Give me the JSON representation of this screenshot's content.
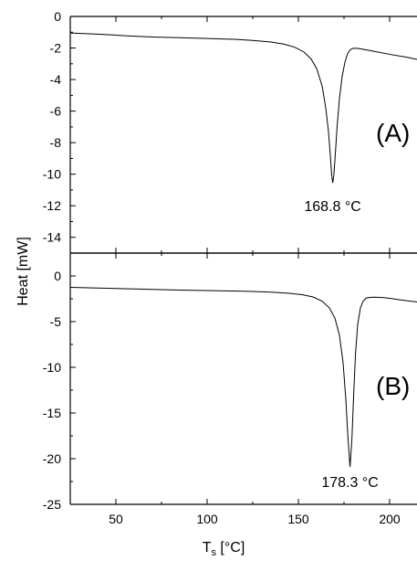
{
  "chart_data": [
    {
      "type": "line",
      "panel_label": "(A)",
      "annotation": "168.8 °C",
      "annotation_at": [
        168.8,
        -12.0
      ],
      "xlim": [
        25,
        215
      ],
      "ylim": [
        -15,
        0
      ],
      "yticks": [
        0,
        -2,
        -4,
        -6,
        -8,
        -10,
        -12,
        -14
      ],
      "xticks": [
        50,
        100,
        150,
        200
      ],
      "series": [
        {
          "x": [
            25,
            40,
            55,
            70,
            85,
            100,
            115,
            125,
            135,
            142,
            148,
            153,
            157,
            160,
            163,
            165,
            166.5,
            167.5,
            168.2,
            168.8,
            169.4,
            170.2,
            171.2,
            172.5,
            174,
            175.5,
            177,
            178.5,
            180,
            182,
            185,
            190,
            200,
            210,
            215
          ],
          "y": [
            -1.05,
            -1.12,
            -1.22,
            -1.3,
            -1.35,
            -1.4,
            -1.45,
            -1.52,
            -1.62,
            -1.75,
            -1.95,
            -2.25,
            -2.7,
            -3.3,
            -4.4,
            -5.8,
            -7.3,
            -8.8,
            -10.0,
            -10.55,
            -10.1,
            -8.8,
            -7.0,
            -5.2,
            -3.8,
            -2.9,
            -2.35,
            -2.1,
            -2.02,
            -2.02,
            -2.07,
            -2.18,
            -2.4,
            -2.6,
            -2.72
          ]
        }
      ]
    },
    {
      "type": "line",
      "panel_label": "(B)",
      "annotation": "178.3 °C",
      "annotation_at": [
        178.3,
        -22.5
      ],
      "xlim": [
        25,
        215
      ],
      "ylim": [
        -25,
        2.5
      ],
      "yticks": [
        0,
        -5,
        -10,
        -15,
        -20,
        -25
      ],
      "xticks": [
        50,
        100,
        150,
        200
      ],
      "xlabel": "T",
      "xlabel_sub": "s",
      "xlabel_unit": "[°C]",
      "series": [
        {
          "x": [
            25,
            40,
            55,
            70,
            85,
            100,
            115,
            125,
            135,
            145,
            152,
            158,
            163,
            167,
            170,
            172.5,
            174.5,
            176,
            177.2,
            178.3,
            179.3,
            180.3,
            181.3,
            182.5,
            184,
            185.5,
            187,
            189,
            192,
            196,
            200,
            206,
            210,
            215
          ],
          "y": [
            -1.25,
            -1.32,
            -1.4,
            -1.48,
            -1.55,
            -1.6,
            -1.65,
            -1.7,
            -1.78,
            -1.9,
            -2.05,
            -2.3,
            -2.75,
            -3.5,
            -4.6,
            -6.5,
            -9.5,
            -13.5,
            -17.8,
            -20.9,
            -18.0,
            -13.0,
            -8.5,
            -5.3,
            -3.5,
            -2.75,
            -2.45,
            -2.35,
            -2.32,
            -2.36,
            -2.45,
            -2.62,
            -2.72,
            -2.85
          ]
        }
      ]
    }
  ],
  "ylabel": "Heat [mW]"
}
